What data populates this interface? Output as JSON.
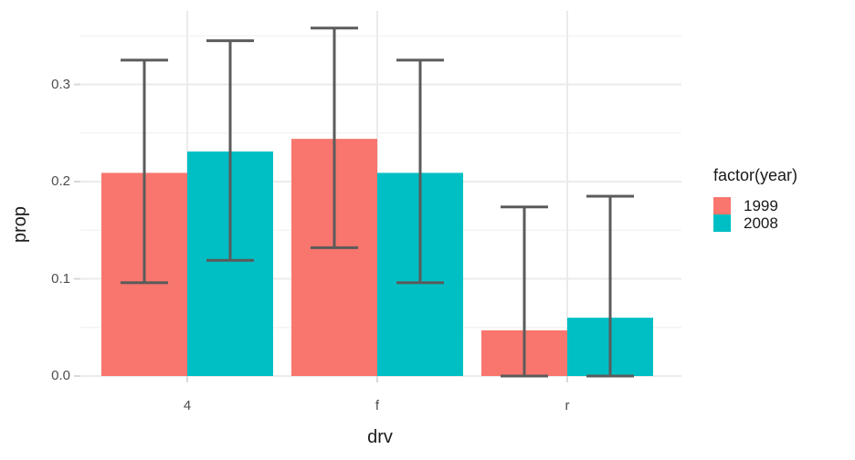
{
  "chart_data": {
    "type": "bar",
    "title": "",
    "xlabel": "drv",
    "ylabel": "prop",
    "categories": [
      "4",
      "f",
      "r"
    ],
    "series": [
      {
        "name": "1999",
        "color": "#F8766D",
        "values": [
          0.209,
          0.244,
          0.047
        ],
        "error_low": [
          0.096,
          0.132,
          0.0
        ],
        "error_high": [
          0.325,
          0.358,
          0.174
        ]
      },
      {
        "name": "2008",
        "color": "#00BFC4",
        "values": [
          0.231,
          0.209,
          0.06
        ],
        "error_low": [
          0.119,
          0.096,
          0.0
        ],
        "error_high": [
          0.345,
          0.325,
          0.185
        ]
      }
    ],
    "legend": {
      "title": "factor(year)",
      "position": "right"
    },
    "y_ticks": [
      0.0,
      0.1,
      0.2,
      0.3
    ],
    "y_tick_labels": [
      "0.0",
      "0.1",
      "0.2",
      "0.3"
    ],
    "y_minor_ticks": [
      0.05,
      0.15,
      0.25,
      0.35
    ],
    "ylim": [
      0,
      0.3755
    ],
    "grid": true,
    "colors": {
      "error_bar": "#5B5B5B",
      "grid_major": "#EBEBEB",
      "grid_minor": "#F4F4F4",
      "axis_text": "#4D4D4D",
      "axis_tick": "#D9D9D9",
      "panel_background": "#FFFFFF"
    }
  }
}
